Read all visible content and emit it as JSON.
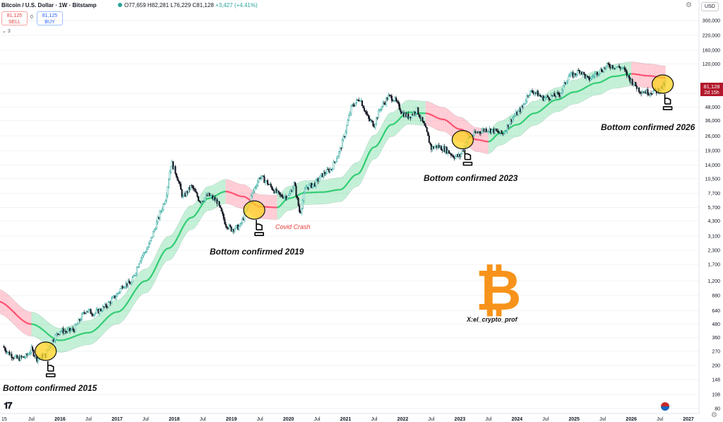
{
  "header": {
    "symbol_title": "Bitcoin / U.S. Dollar · 1W · Bitstamp",
    "ohlc": "O77,659 H82,281 L76,229 C81,128",
    "change": "+3,427 (+4.41%)",
    "sell_price": "81,125",
    "sell_label": "SELL",
    "spread": "0",
    "buy_price": "81,125",
    "buy_label": "BUY",
    "indicator_count": "3"
  },
  "toolbar": {
    "currency": "USD"
  },
  "price_tag": {
    "price": "81,128",
    "countdown": "2d 15h"
  },
  "annotations": [
    {
      "text": "Bottom confirmed 2015",
      "kind": "label"
    },
    {
      "text": "Bottom confirmed 2019",
      "kind": "label"
    },
    {
      "text": "Covid Crash",
      "kind": "note"
    },
    {
      "text": "Bottom confirmed 2023",
      "kind": "label"
    },
    {
      "text": "Bottom confirmed 2026",
      "kind": "label"
    },
    {
      "text": "X:el_crypto_prof",
      "kind": "credit"
    }
  ],
  "logos": {
    "tradingview": "TV",
    "bitcoin_icon": "bitcoin-icon"
  },
  "colors": {
    "band_green": "#2ecc71",
    "band_red": "#ff4d6d",
    "candle_up": "#26a69a",
    "candle_down": "#131722",
    "circle": "#ffd21f",
    "accent_orange": "#f7931a",
    "price_tag": "#b2182b"
  },
  "chart_data": {
    "type": "line",
    "y_scale": "log",
    "xlabel": "",
    "ylabel": "",
    "x_ticks": [
      "15",
      "Jul",
      "2016",
      "Jul",
      "2017",
      "Jul",
      "2018",
      "Jul",
      "2019",
      "Jul",
      "2020",
      "Jul",
      "2021",
      "Jul",
      "2022",
      "Jul",
      "2023",
      "Jul",
      "2024",
      "Jul",
      "2025",
      "Jul",
      "2026",
      "Jul",
      "2027"
    ],
    "y_ticks": [
      "300,000",
      "220,000",
      "160,000",
      "120,000",
      "64,000",
      "48,000",
      "36,000",
      "26,000",
      "19,000",
      "14,000",
      "10,500",
      "7,700",
      "5,700",
      "4,300",
      "3,100",
      "2,300",
      "1,700",
      "1,200",
      "880",
      "640",
      "480",
      "360",
      "270",
      "200",
      "148",
      "108",
      "80"
    ],
    "ylim": [
      80,
      400000
    ],
    "price_series": {
      "name": "",
      "x": [
        2015.0,
        2015.1,
        2015.25,
        2015.4,
        2015.5,
        2015.6,
        2015.75,
        2015.85,
        2016.0,
        2016.1,
        2016.25,
        2016.45,
        2016.6,
        2016.8,
        2017.0,
        2017.1,
        2017.25,
        2017.4,
        2017.55,
        2017.7,
        2017.85,
        2017.95,
        2018.05,
        2018.15,
        2018.3,
        2018.45,
        2018.6,
        2018.75,
        2018.9,
        2019.0,
        2019.15,
        2019.25,
        2019.4,
        2019.5,
        2019.6,
        2019.75,
        2019.85,
        2020.0,
        2020.1,
        2020.2,
        2020.3,
        2020.45,
        2020.6,
        2020.75,
        2020.9,
        2021.0,
        2021.1,
        2021.25,
        2021.4,
        2021.5,
        2021.6,
        2021.75,
        2021.85,
        2022.0,
        2022.1,
        2022.25,
        2022.4,
        2022.5,
        2022.6,
        2022.75,
        2022.9,
        2023.0,
        2023.15,
        2023.3,
        2023.45,
        2023.6,
        2023.75,
        2023.9,
        2024.0,
        2024.1,
        2024.2,
        2024.3,
        2024.45,
        2024.6,
        2024.75,
        2024.9,
        2025.0,
        2025.1,
        2025.25,
        2025.4,
        2025.5,
        2025.6,
        2025.75,
        2025.85,
        2025.95,
        2026.05,
        2026.15,
        2026.3,
        2026.45,
        2026.55,
        2026.6
      ],
      "y": [
        300,
        260,
        230,
        240,
        280,
        230,
        250,
        330,
        420,
        410,
        430,
        650,
        600,
        700,
        900,
        1100,
        1150,
        1900,
        2500,
        4200,
        7000,
        15000,
        11000,
        7000,
        9000,
        6500,
        7400,
        6500,
        4000,
        3600,
        3800,
        5200,
        8500,
        11000,
        10000,
        8200,
        7300,
        7200,
        9500,
        5000,
        8700,
        9300,
        11500,
        13000,
        19000,
        29000,
        48000,
        58000,
        37000,
        33000,
        46000,
        60000,
        57000,
        42000,
        39000,
        45000,
        30000,
        20000,
        21000,
        19500,
        16800,
        17000,
        25000,
        28000,
        30000,
        29000,
        27000,
        37000,
        42000,
        48000,
        65000,
        67000,
        58000,
        60000,
        63000,
        93000,
        95000,
        105000,
        85000,
        100000,
        107000,
        117000,
        112000,
        110000,
        90000,
        78000,
        68000,
        66000,
        67000,
        74000,
        81128
      ]
    },
    "band": {
      "name": "",
      "x": [
        2014.9,
        2015.5,
        2016.0,
        2016.5,
        2017.0,
        2017.5,
        2017.9,
        2018.3,
        2018.6,
        2018.9,
        2019.2,
        2019.5,
        2019.8,
        2020.0,
        2020.3,
        2020.6,
        2020.9,
        2021.2,
        2021.5,
        2021.8,
        2022.1,
        2022.4,
        2022.7,
        2023.0,
        2023.3,
        2023.5,
        2023.7,
        2024.0,
        2024.3,
        2024.7,
        2025.0,
        2025.4,
        2025.7,
        2026.0,
        2026.3,
        2026.6
      ],
      "y": [
        780,
        480,
        340,
        400,
        620,
        1200,
        2400,
        4600,
        6900,
        8000,
        7200,
        5800,
        5700,
        6900,
        7800,
        7900,
        8300,
        11500,
        20500,
        33000,
        43000,
        42000,
        37000,
        30000,
        24000,
        23000,
        27500,
        33000,
        42000,
        56000,
        66000,
        80000,
        92000,
        97000,
        93000,
        89000
      ],
      "phase_colors": [
        "red",
        "green",
        "green",
        "green",
        "green",
        "green",
        "green",
        "green",
        "green",
        "red",
        "red",
        "red",
        "green",
        "green",
        "green",
        "green",
        "green",
        "green",
        "green",
        "green",
        "green",
        "red",
        "red",
        "red",
        "red",
        "green",
        "green",
        "green",
        "green",
        "green",
        "green",
        "green",
        "green",
        "red",
        "red",
        "red"
      ]
    },
    "circles": [
      {
        "x": 2015.75,
        "y": 270,
        "label": "Bottom confirmed 2015"
      },
      {
        "x": 2019.4,
        "y": 5400,
        "label": "Bottom confirmed 2019"
      },
      {
        "x": 2023.05,
        "y": 24000,
        "label": "Bottom confirmed 2023"
      },
      {
        "x": 2026.55,
        "y": 78000,
        "label": "Bottom confirmed 2026"
      }
    ],
    "last_price": 81128
  }
}
